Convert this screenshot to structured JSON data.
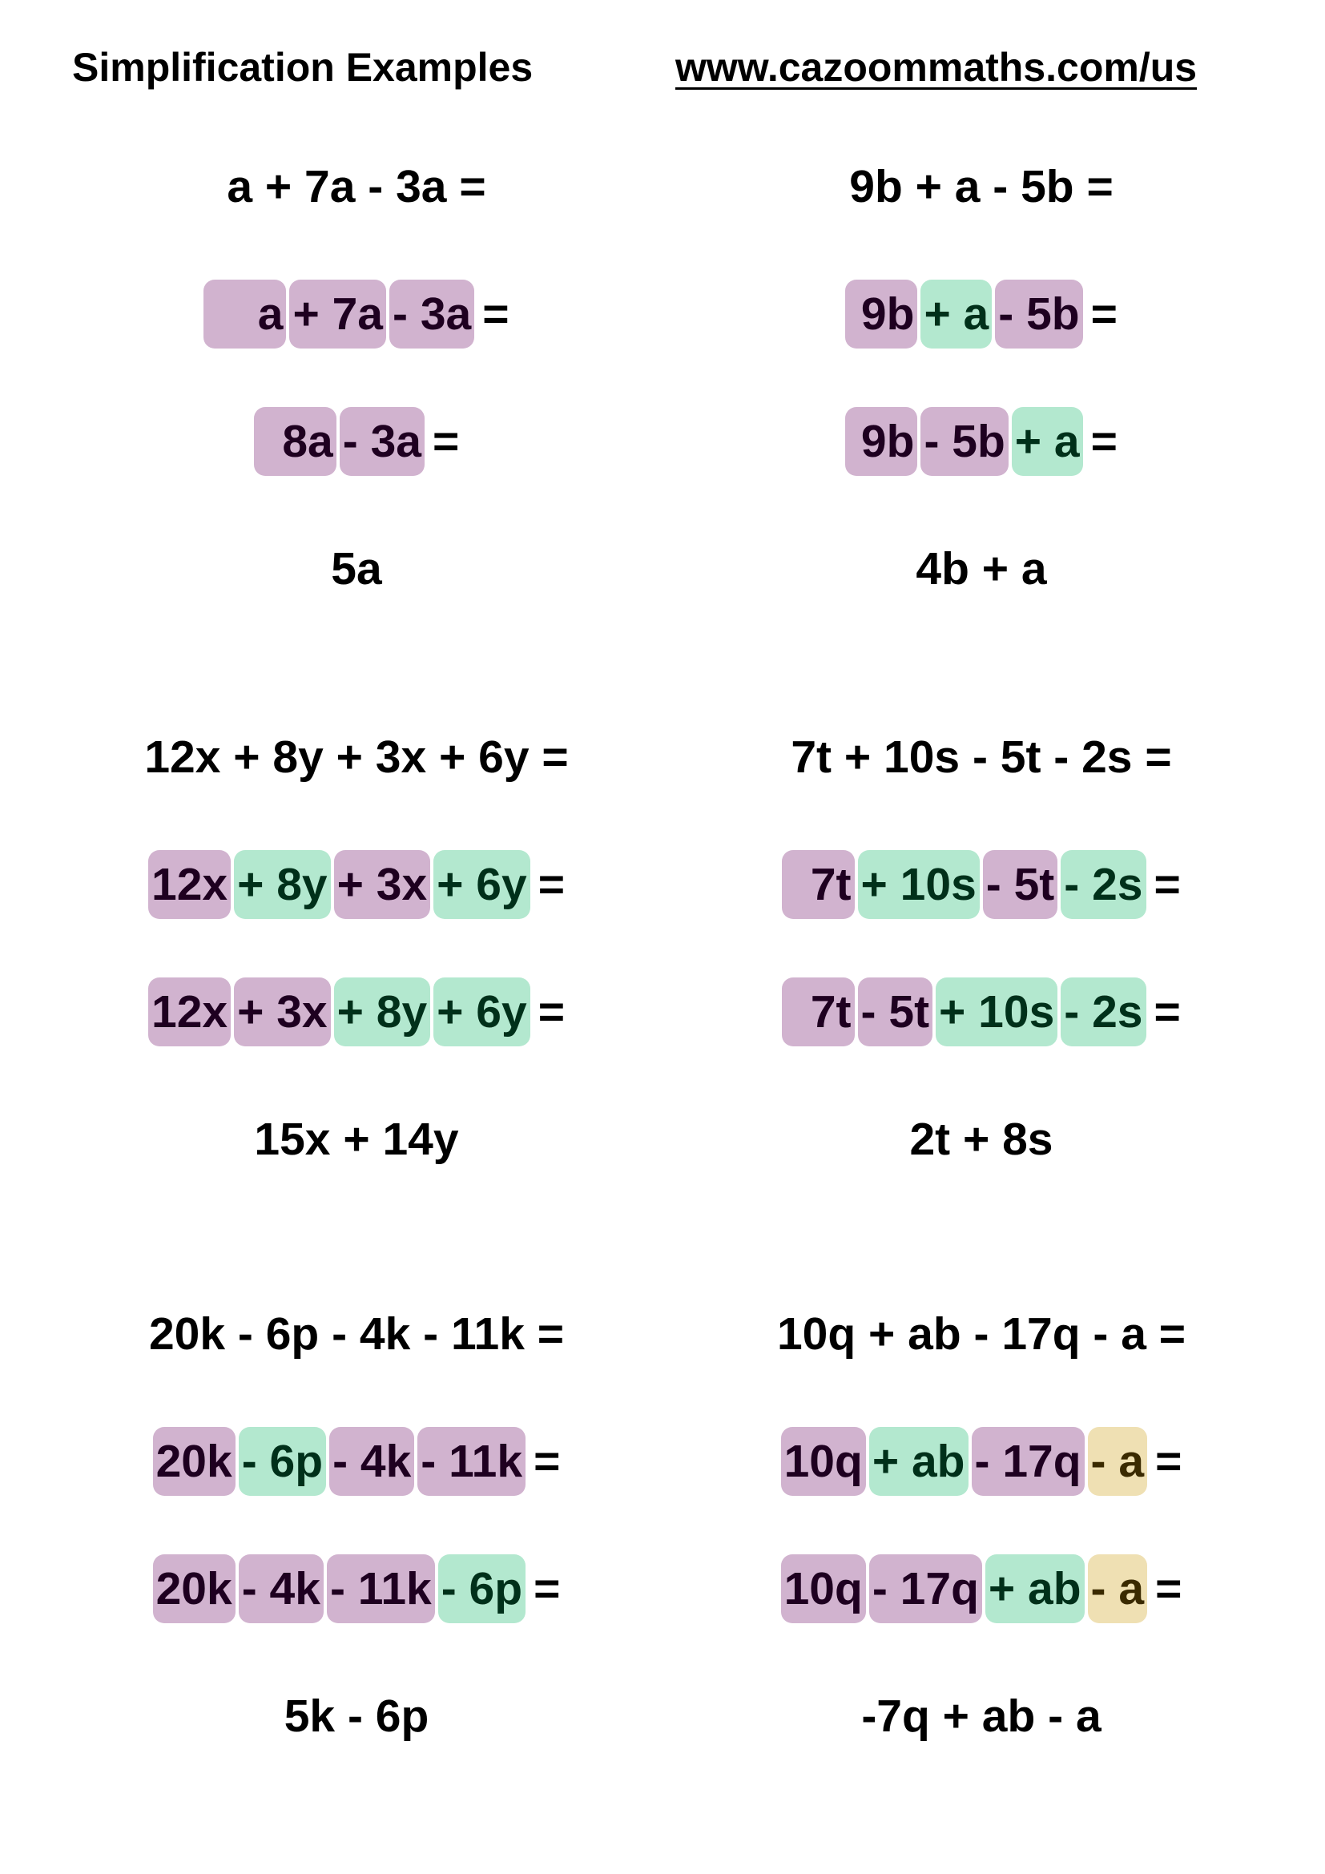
{
  "header": {
    "title": "Simplification Examples",
    "url": "www.cazoommaths.com/us"
  },
  "colors": {
    "purple": "#d1b3cf",
    "green": "#b3e8cf",
    "yellow": "#efe0b3",
    "purple_text": "#1e0020",
    "green_text": "#00301a",
    "yellow_text": "#3a2a00"
  },
  "examples": [
    {
      "expression": "a + 7a - 3a =",
      "steps": [
        [
          {
            "text": "    a",
            "color": "purple"
          },
          {
            "text": "+ 7a",
            "color": "purple"
          },
          {
            "text": "- 3a",
            "color": "purple"
          }
        ],
        [
          {
            "text": "  8a",
            "color": "purple"
          },
          {
            "text": "- 3a",
            "color": "purple"
          }
        ]
      ],
      "answer": "5a"
    },
    {
      "expression": "9b + a - 5b =",
      "steps": [
        [
          {
            "text": " 9b",
            "color": "purple"
          },
          {
            "text": "+ a",
            "color": "green"
          },
          {
            "text": "- 5b",
            "color": "purple"
          }
        ],
        [
          {
            "text": " 9b",
            "color": "purple"
          },
          {
            "text": "- 5b",
            "color": "purple"
          },
          {
            "text": "+ a",
            "color": "green"
          }
        ]
      ],
      "answer": "4b + a"
    },
    {
      "expression": "12x + 8y + 3x + 6y =",
      "steps": [
        [
          {
            "text": "12x",
            "color": "purple"
          },
          {
            "text": "+ 8y",
            "color": "green"
          },
          {
            "text": "+ 3x",
            "color": "purple"
          },
          {
            "text": "+ 6y",
            "color": "green"
          }
        ],
        [
          {
            "text": "12x",
            "color": "purple"
          },
          {
            "text": "+ 3x",
            "color": "purple"
          },
          {
            "text": "+ 8y",
            "color": "green"
          },
          {
            "text": "+ 6y",
            "color": "green"
          }
        ]
      ],
      "answer": "15x + 14y"
    },
    {
      "expression": "7t + 10s - 5t - 2s =",
      "steps": [
        [
          {
            "text": "  7t",
            "color": "purple"
          },
          {
            "text": "+ 10s",
            "color": "green"
          },
          {
            "text": "- 5t",
            "color": "purple"
          },
          {
            "text": "- 2s",
            "color": "green"
          }
        ],
        [
          {
            "text": "  7t",
            "color": "purple"
          },
          {
            "text": "- 5t",
            "color": "purple"
          },
          {
            "text": "+ 10s",
            "color": "green"
          },
          {
            "text": "- 2s",
            "color": "green"
          }
        ]
      ],
      "answer": "2t + 8s"
    },
    {
      "expression": "20k - 6p - 4k - 11k =",
      "steps": [
        [
          {
            "text": "20k",
            "color": "purple"
          },
          {
            "text": "- 6p",
            "color": "green"
          },
          {
            "text": "- 4k",
            "color": "purple"
          },
          {
            "text": "- 11k",
            "color": "purple"
          }
        ],
        [
          {
            "text": "20k",
            "color": "purple"
          },
          {
            "text": "- 4k",
            "color": "purple"
          },
          {
            "text": "- 11k",
            "color": "purple"
          },
          {
            "text": "- 6p",
            "color": "green"
          }
        ]
      ],
      "answer": "5k - 6p"
    },
    {
      "expression": "10q + ab - 17q - a =",
      "steps": [
        [
          {
            "text": "10q",
            "color": "purple"
          },
          {
            "text": "+ ab",
            "color": "green"
          },
          {
            "text": "- 17q",
            "color": "purple"
          },
          {
            "text": "- a",
            "color": "yellow"
          }
        ],
        [
          {
            "text": "10q",
            "color": "purple"
          },
          {
            "text": "- 17q",
            "color": "purple"
          },
          {
            "text": "+ ab",
            "color": "green"
          },
          {
            "text": "- a",
            "color": "yellow"
          }
        ]
      ],
      "answer": "-7q + ab - a"
    }
  ],
  "equals_sign": "="
}
